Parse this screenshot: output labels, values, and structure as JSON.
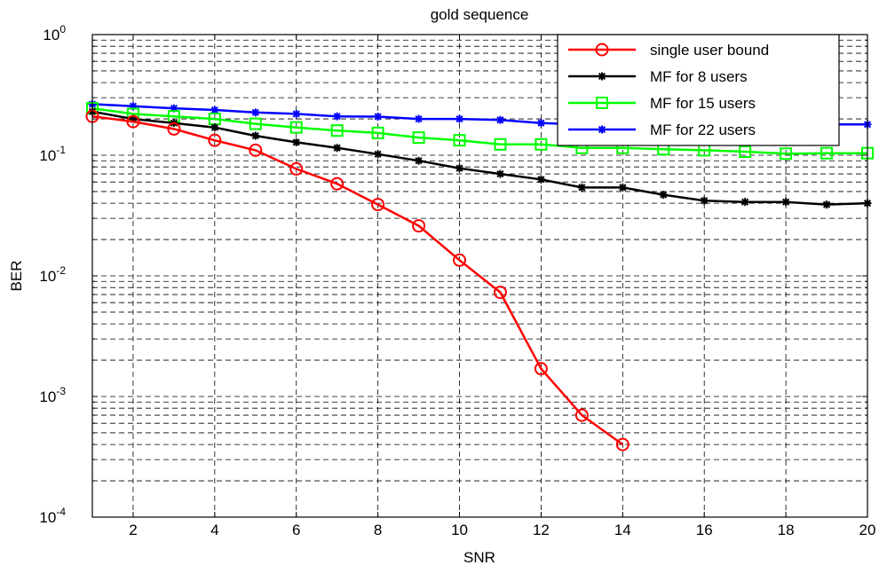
{
  "chart_data": {
    "type": "line",
    "title": "gold sequence",
    "xlabel": "SNR",
    "ylabel": "BER",
    "xlim": [
      1,
      20
    ],
    "ylim": [
      0.0001,
      1
    ],
    "yscale": "log",
    "grid": true,
    "legend_position": "top-right",
    "x_ticks": [
      2,
      4,
      6,
      8,
      10,
      12,
      14,
      16,
      18,
      20
    ],
    "x_tick_labels": [
      "2",
      "4",
      "6",
      "8",
      "10",
      "12",
      "14",
      "16",
      "18",
      "20"
    ],
    "y_ticks": [
      0.0001,
      0.001,
      0.01,
      0.1,
      1
    ],
    "y_tick_labels": [
      {
        "base": "10",
        "exp": "-4"
      },
      {
        "base": "10",
        "exp": "-3"
      },
      {
        "base": "10",
        "exp": "-2"
      },
      {
        "base": "10",
        "exp": "-1"
      },
      {
        "base": "10",
        "exp": "0"
      }
    ],
    "series": [
      {
        "name": "single user bound",
        "color": "#ff0000",
        "marker": "circle",
        "x": [
          1,
          2,
          3,
          4,
          5,
          6,
          7,
          8,
          9,
          10,
          11,
          12,
          13,
          14
        ],
        "y": [
          0.21,
          0.19,
          0.165,
          0.133,
          0.11,
          0.077,
          0.058,
          0.039,
          0.026,
          0.0135,
          0.0073,
          0.0017,
          0.0007,
          0.0004
        ]
      },
      {
        "name": "MF for 8 users",
        "color": "#000000",
        "marker": "star",
        "x": [
          1,
          2,
          3,
          4,
          5,
          6,
          7,
          8,
          9,
          10,
          11,
          12,
          13,
          14,
          15,
          16,
          17,
          18,
          19,
          20
        ],
        "y": [
          0.23,
          0.2,
          0.185,
          0.17,
          0.145,
          0.128,
          0.115,
          0.102,
          0.09,
          0.078,
          0.07,
          0.063,
          0.054,
          0.054,
          0.047,
          0.042,
          0.041,
          0.041,
          0.039,
          0.04
        ]
      },
      {
        "name": "MF for 15 users",
        "color": "#00ff00",
        "marker": "square",
        "x": [
          1,
          2,
          3,
          4,
          5,
          6,
          7,
          8,
          9,
          10,
          11,
          12,
          13,
          14,
          15,
          16,
          17,
          18,
          19,
          20
        ],
        "y": [
          0.245,
          0.22,
          0.21,
          0.2,
          0.182,
          0.17,
          0.16,
          0.153,
          0.14,
          0.133,
          0.123,
          0.123,
          0.115,
          0.115,
          0.112,
          0.11,
          0.107,
          0.103,
          0.104,
          0.104
        ]
      },
      {
        "name": "MF for 22 users",
        "color": "#0000ff",
        "marker": "star",
        "x": [
          1,
          2,
          3,
          4,
          5,
          6,
          7,
          8,
          9,
          10,
          11,
          12,
          13,
          14,
          15,
          16,
          17,
          18,
          19,
          20
        ],
        "y": [
          0.265,
          0.255,
          0.245,
          0.237,
          0.226,
          0.22,
          0.21,
          0.209,
          0.2,
          0.2,
          0.196,
          0.185,
          0.18,
          0.18,
          0.18,
          0.18,
          0.18,
          0.18,
          0.18,
          0.18
        ]
      }
    ]
  }
}
